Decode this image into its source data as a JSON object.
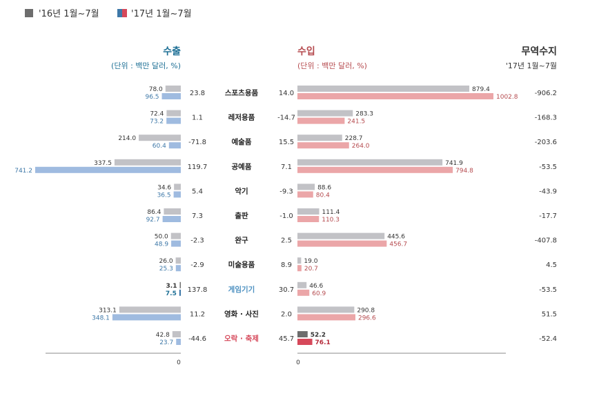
{
  "legend": {
    "prev_label": "'16년 1월~7월",
    "curr_label": "'17년 1월~7월"
  },
  "export_header": {
    "title": "수출",
    "unit": "(단위 : 백만 달러, %)"
  },
  "import_header": {
    "title": "수입",
    "unit": "(단위 : 백만 달러, %)"
  },
  "balance_header": {
    "title": "무역수지",
    "period": "'17년 1월~7월"
  },
  "axis": {
    "export_zero": "0",
    "import_zero": "0"
  },
  "colors": {
    "prev_bar": "#c2c2c6",
    "export_curr_bar": "#9fbbe0",
    "import_curr_bar": "#eba6a8",
    "export_accent": "#1d6f95",
    "import_accent": "#b54a4e",
    "highlight_prev": "#6d6d6d",
    "highlight_export": "#3e78a8",
    "highlight_import": "#d6485a",
    "game_label": "#4a8fc0",
    "music_label": "#d6485a"
  },
  "chart_data": {
    "type": "bar",
    "categories": [
      "스포츠용품",
      "레저용품",
      "예술품",
      "공예품",
      "악기",
      "출판",
      "완구",
      "미술용품",
      "게임기기",
      "영화 · 사진",
      "오락 · 축제"
    ],
    "export_prev": [
      78.0,
      72.4,
      214.0,
      337.5,
      34.6,
      86.4,
      50.0,
      26.0,
      3.1,
      313.1,
      42.8
    ],
    "export_curr": [
      96.5,
      73.2,
      60.4,
      741.2,
      36.5,
      92.7,
      48.9,
      25.3,
      7.5,
      348.1,
      23.7
    ],
    "export_growth": [
      23.8,
      1.1,
      -71.8,
      119.7,
      5.4,
      7.3,
      -2.3,
      -2.9,
      137.8,
      11.2,
      -44.6
    ],
    "import_growth": [
      14.0,
      -14.7,
      15.5,
      7.1,
      -9.3,
      -1.0,
      2.5,
      8.9,
      30.7,
      2.0,
      45.7
    ],
    "import_prev": [
      879.4,
      283.3,
      228.7,
      741.9,
      88.6,
      111.4,
      445.6,
      19.0,
      46.6,
      290.8,
      52.2
    ],
    "import_curr": [
      1002.8,
      241.5,
      264.0,
      794.8,
      80.4,
      110.3,
      456.7,
      20.7,
      60.9,
      296.6,
      76.1
    ],
    "trade_balance": [
      -906.2,
      -168.3,
      -203.6,
      -53.5,
      -43.9,
      -17.7,
      -407.8,
      4.5,
      -53.5,
      51.5,
      -52.4
    ],
    "highlight_export_category": "게임기기",
    "highlight_import_category": "오락 · 축제"
  }
}
